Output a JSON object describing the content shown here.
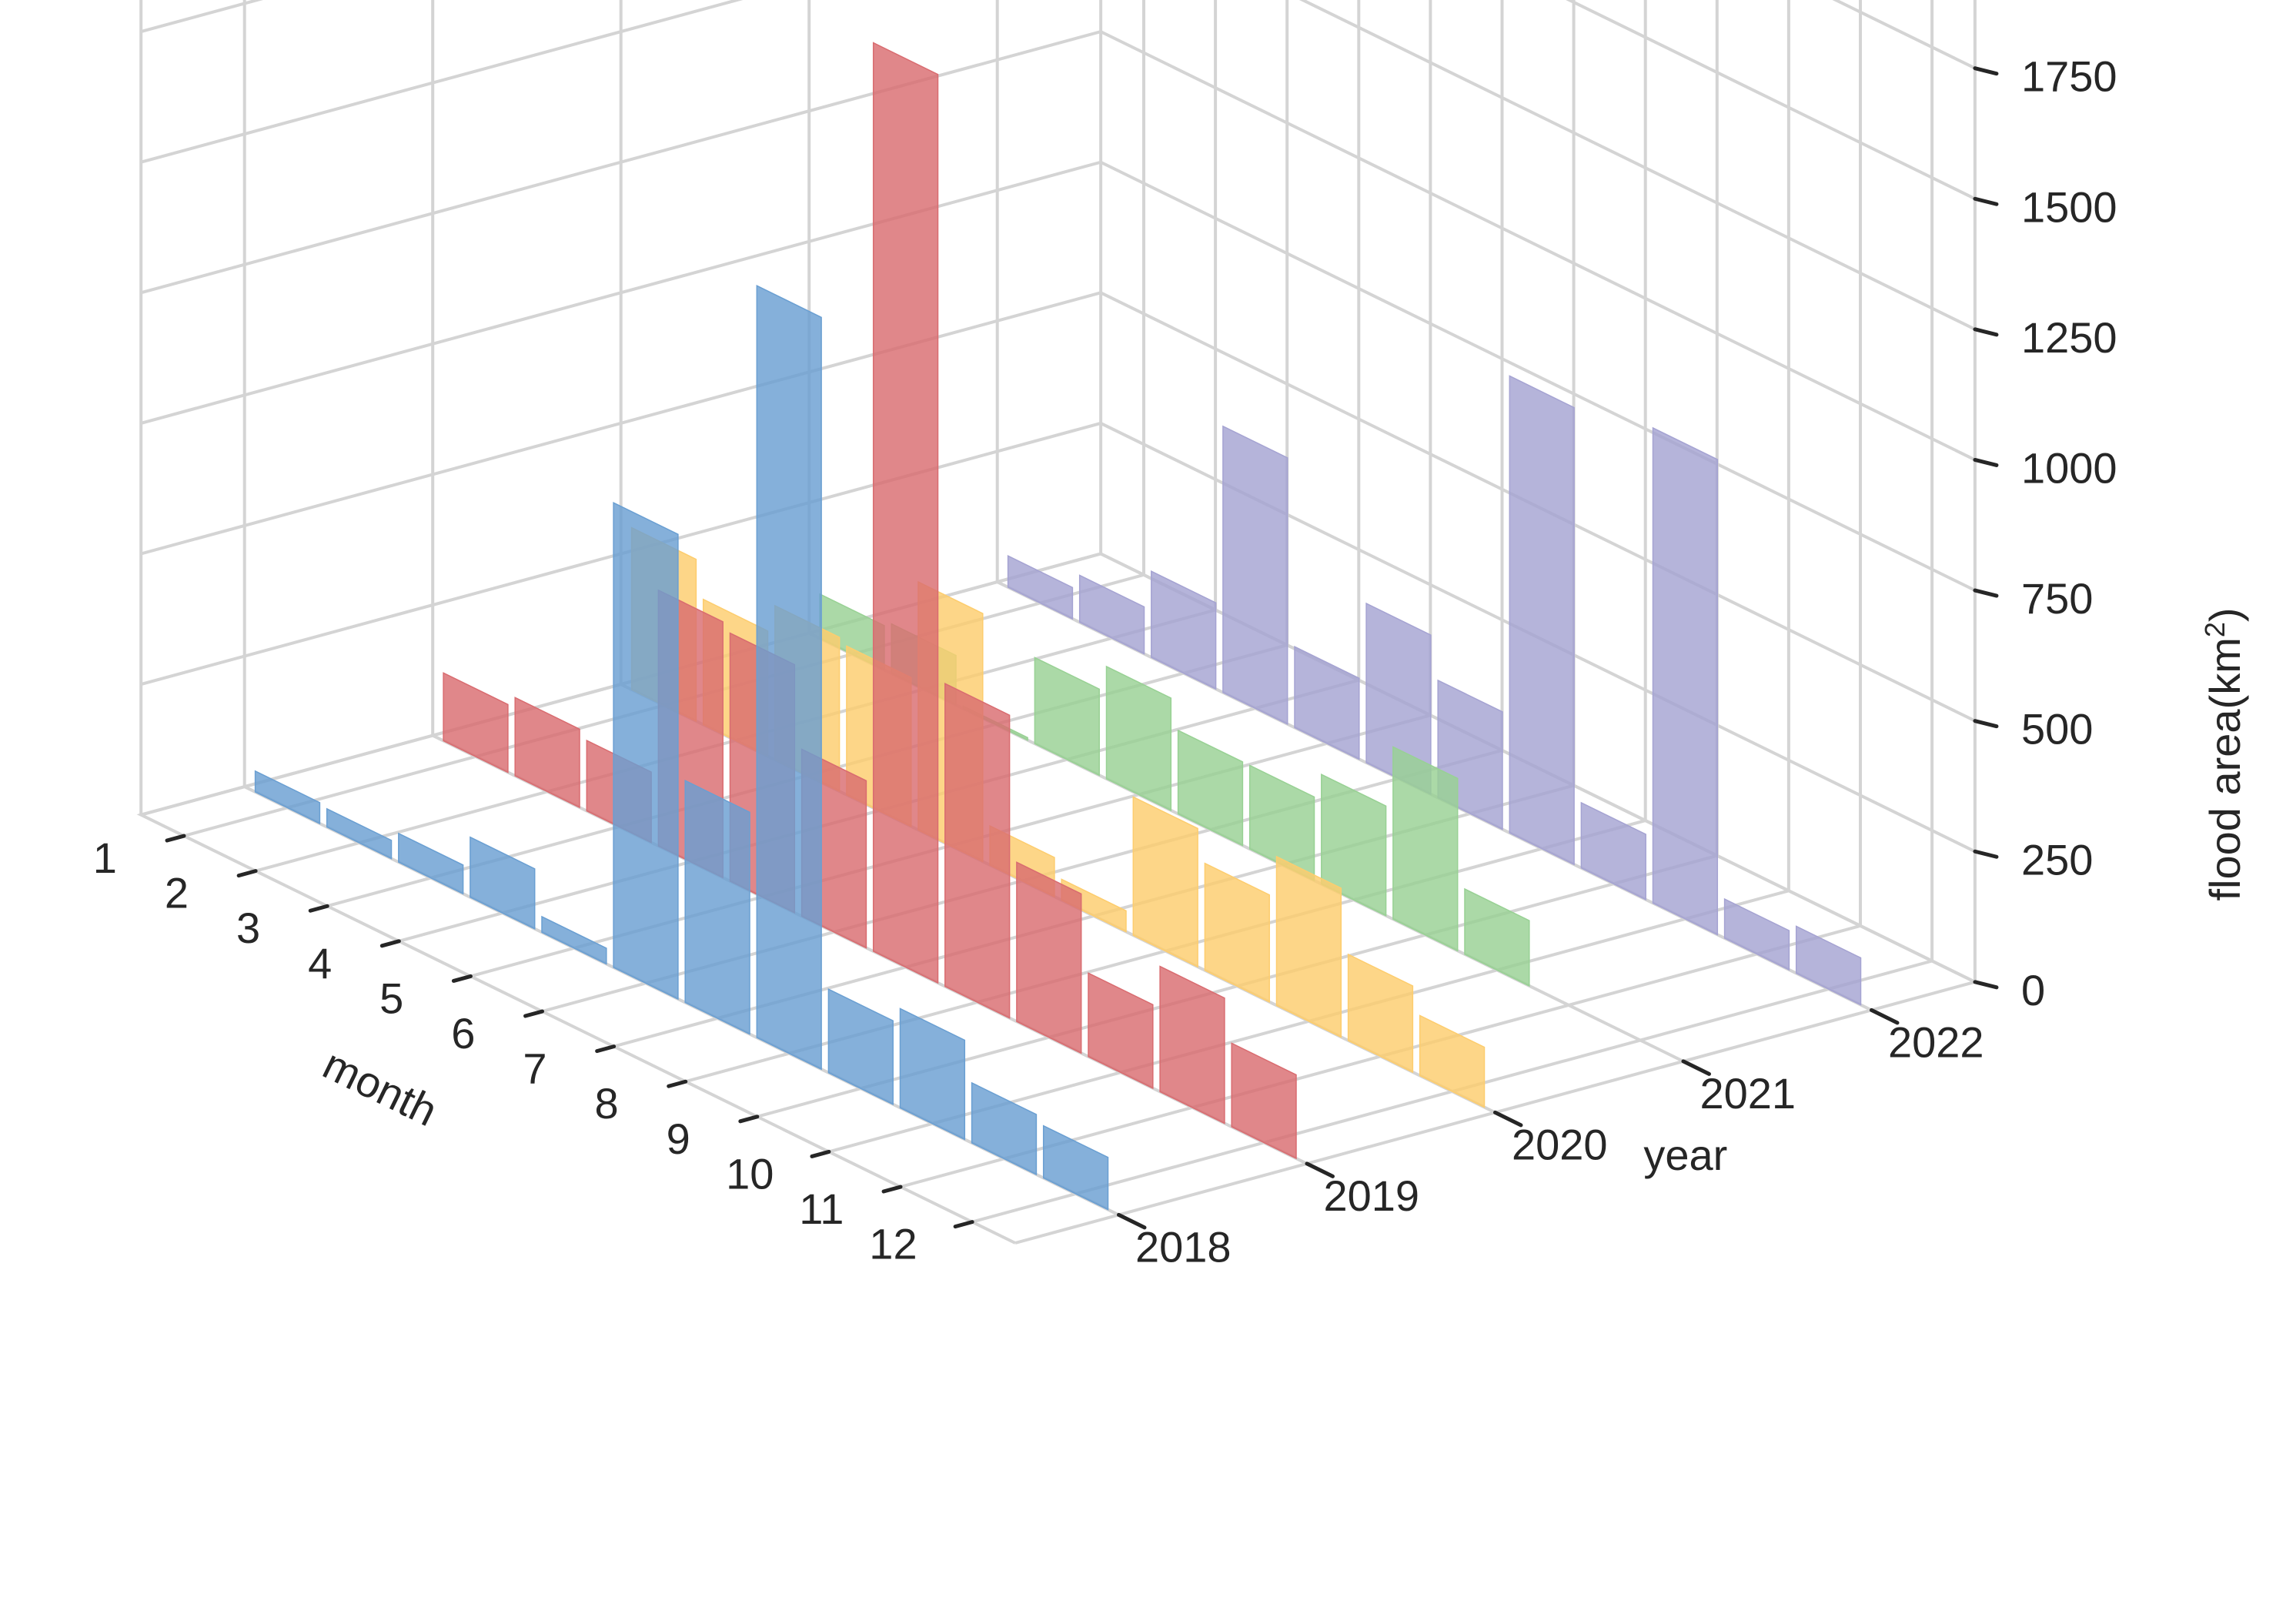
{
  "chart_data": {
    "type": "bar",
    "projection": "3d",
    "xlabel": "month",
    "ylabel": "year",
    "zlabel": "flood area(km²)",
    "categories": [
      "1",
      "2",
      "3",
      "4",
      "5",
      "6",
      "7",
      "8",
      "9",
      "10",
      "11",
      "12"
    ],
    "years": [
      "2018",
      "2019",
      "2020",
      "2021",
      "2022"
    ],
    "zlim": [
      0,
      2000
    ],
    "zticks": [
      "0",
      "250",
      "500",
      "750",
      "1000",
      "1250",
      "1500",
      "1750"
    ],
    "grid": true,
    "legend": "none",
    "series": [
      {
        "year": "2018",
        "color": "#6a9fd2",
        "values": [
          40,
          35,
          55,
          115,
          30,
          890,
          425,
          1440,
          160,
          190,
          115,
          100
        ]
      },
      {
        "year": "2019",
        "color": "#d96c70",
        "values": [
          130,
          150,
          135,
          490,
          475,
          320,
          1740,
          580,
          305,
          160,
          240,
          160
        ]
      },
      {
        "year": "2020",
        "color": "#fdcd6e",
        "values": [
          310,
          240,
          295,
          285,
          475,
          75,
          40,
          265,
          205,
          285,
          165,
          115
        ]
      },
      {
        "year": "2021",
        "color": "#98d194",
        "values": [
          85,
          95,
          5,
          165,
          215,
          160,
          160,
          210,
          330,
          125,
          0,
          0
        ]
      },
      {
        "year": "2022",
        "color": "#a5a3d2",
        "values": [
          60,
          90,
          165,
          510,
          155,
          305,
          225,
          875,
          125,
          910,
          75,
          90
        ]
      }
    ]
  }
}
